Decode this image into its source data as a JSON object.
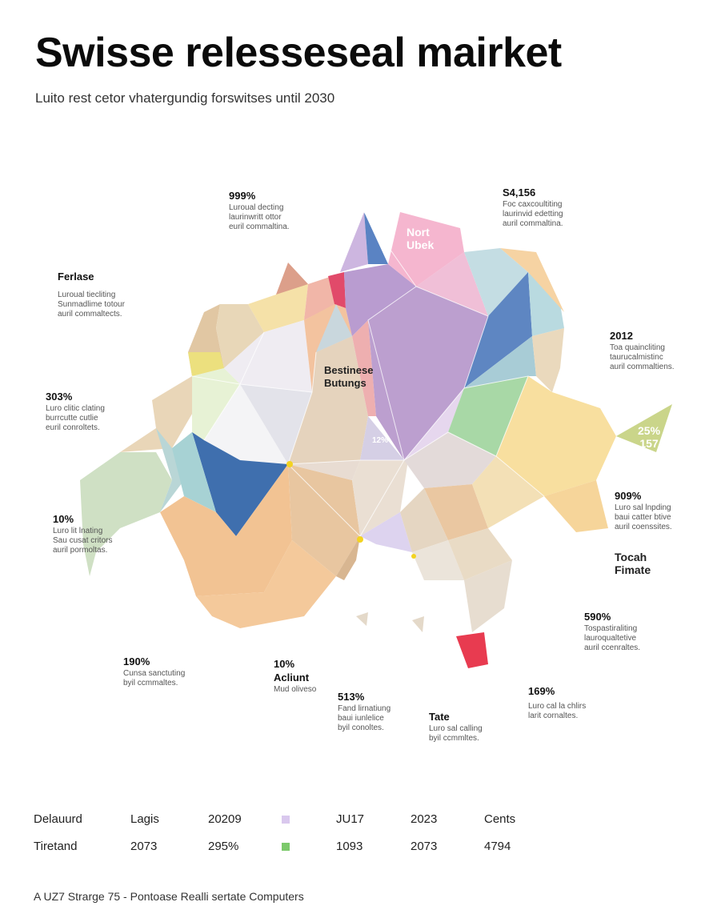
{
  "header": {
    "title": "Swisse relesseseal mairket",
    "subtitle": "Luito rest cetor vhatergundig forswitses until 2030"
  },
  "map_labels": {
    "north": "Nort\nUbek",
    "center": "Bestinese\nButungs",
    "center_small": "12%",
    "east_badge": "25%\n157",
    "tocah": "Tocah\nFimate"
  },
  "callouts": [
    {
      "id": "top-left",
      "value": "999%",
      "text": "Luroual decting\nlaurinwritt ottor\neuril commaltina."
    },
    {
      "id": "top-right",
      "value": "S4,156",
      "text": "Foc caxcoultiting\nlaurinvid edetting\nauril commaltina."
    },
    {
      "id": "left-upper",
      "value": "Ferlase",
      "text": "Luroual tiecliting\nSunmadlime totour\nauril commaltects."
    },
    {
      "id": "right-upper",
      "value": "2012",
      "text": "Toa quaincliting\ntaurucalmistinc\nauril commaltiens."
    },
    {
      "id": "left-mid",
      "value": "303%",
      "text": "Luro clitic clating\nburrcutte cutlie\neuril conroltets."
    },
    {
      "id": "right-mid",
      "value": "909%",
      "text": "Luro sal lnpding\nbaui catter btive\nauril coenssites."
    },
    {
      "id": "left-low",
      "value": "10%",
      "text": "Luro lit lnating\nSau cusat critors\nauril pormoltas."
    },
    {
      "id": "right-low",
      "value": "590%",
      "text": "Tospastiraliting\nlauroqualtetive\nauril ccenraltes."
    },
    {
      "id": "bottom-a",
      "value": "190%",
      "text": "Cunsa sanctuting\nbyil ccmmaltes."
    },
    {
      "id": "bottom-b",
      "value": "10%",
      "title": "Acliunt",
      "text": "Mud oliveso"
    },
    {
      "id": "bottom-c",
      "value": "513%",
      "text": "Fand lirnatiung\nbaui iunlelice\nbyil conoltes."
    },
    {
      "id": "bottom-d",
      "value": "Tate",
      "text": "Luro sal calling\nbyil ccmmltes."
    },
    {
      "id": "bottom-e",
      "value": "169%",
      "text": "Luro cal la chlirs\nlarit cornaltes."
    }
  ],
  "legend": {
    "row1": [
      "Delauurd",
      "Lagis",
      "20209",
      "",
      "JU17",
      "2023",
      "Cents"
    ],
    "row2": [
      "Tiretand",
      "2073",
      "295%",
      "",
      "1093",
      "2073",
      "4794"
    ],
    "swatch_colors": [
      "#d9c8ee",
      "#7cc96b"
    ]
  },
  "footer": "A UZ7 Strarge 75 - Pontoase Realli sertate Computers",
  "colors": {
    "orange": "#f2c394",
    "purple": "#bfa2d2",
    "blue": "#4674b0",
    "teal": "#9fc9cf",
    "yellow": "#f6de9a",
    "green": "#c9dfb7",
    "pink": "#f6b8cf",
    "red": "#e8384f",
    "beige": "#e6d2b8"
  }
}
